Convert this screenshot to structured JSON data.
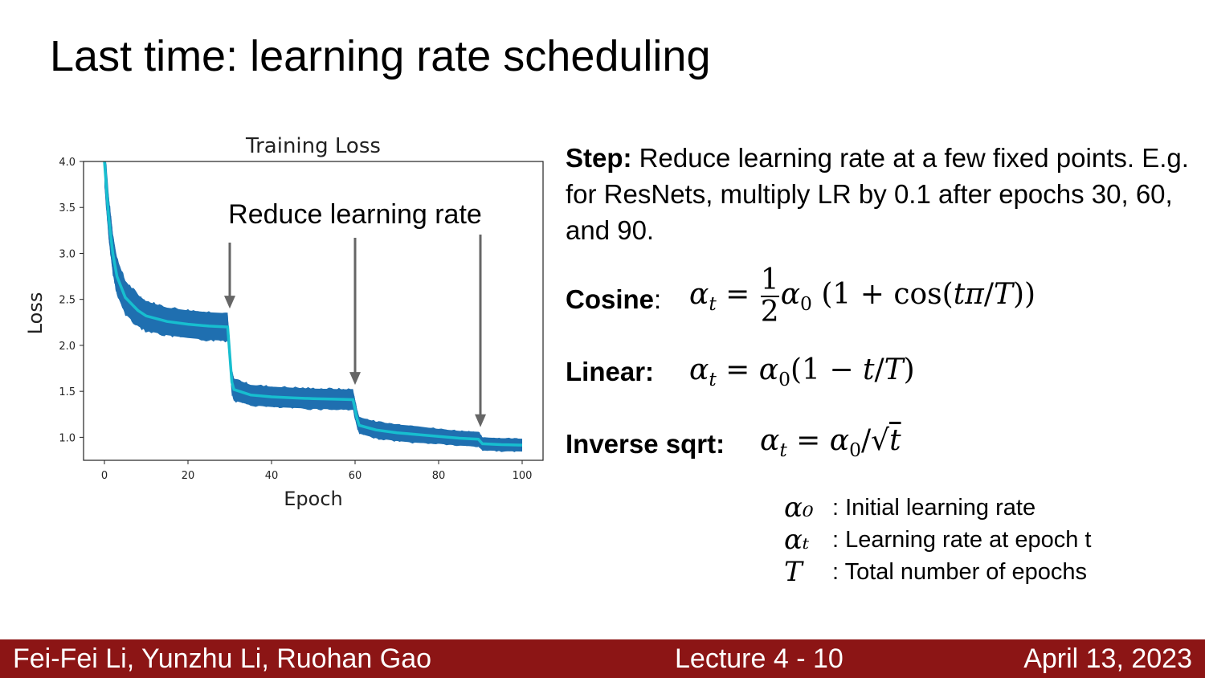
{
  "slide": {
    "title": "Last time: learning rate scheduling"
  },
  "chart_data": {
    "type": "line",
    "title": "Training Loss",
    "xlabel": "Epoch",
    "ylabel": "Loss",
    "xlim": [
      -5,
      105
    ],
    "ylim": [
      0.75,
      4.0
    ],
    "xticks": [
      0,
      20,
      40,
      60,
      80,
      100
    ],
    "yticks": [
      1.0,
      1.5,
      2.0,
      2.5,
      3.0,
      3.5,
      4.0
    ],
    "grid": false,
    "series": [
      {
        "name": "",
        "x": [
          0,
          1,
          2,
          3,
          5,
          8,
          10,
          15,
          20,
          25,
          29.5,
          30.5,
          31,
          35,
          40,
          45,
          50,
          55,
          59.5,
          60.5,
          61,
          65,
          70,
          75,
          80,
          85,
          89.5,
          90.5,
          95,
          100
        ],
        "y": [
          4.0,
          3.4,
          3.0,
          2.75,
          2.52,
          2.38,
          2.32,
          2.26,
          2.23,
          2.21,
          2.2,
          1.6,
          1.52,
          1.46,
          1.44,
          1.43,
          1.42,
          1.415,
          1.41,
          1.2,
          1.13,
          1.08,
          1.05,
          1.03,
          1.01,
          0.99,
          0.98,
          0.93,
          0.92,
          0.915
        ],
        "band": [
          0.26,
          0.24,
          0.22,
          0.2,
          0.18,
          0.17,
          0.16,
          0.15,
          0.15,
          0.15,
          0.15,
          0.13,
          0.12,
          0.11,
          0.11,
          0.11,
          0.11,
          0.11,
          0.11,
          0.1,
          0.09,
          0.09,
          0.09,
          0.09,
          0.08,
          0.08,
          0.08,
          0.07,
          0.07,
          0.07
        ]
      }
    ],
    "annotation": {
      "text": "Reduce learning rate",
      "arrow_epochs": [
        30,
        60,
        90
      ]
    },
    "colors": {
      "band": "#1f6fb0",
      "line": "#17becf",
      "arrow": "#666666"
    }
  },
  "methods": {
    "step_label": "Step:",
    "step_text": " Reduce learning rate at a few fixed points. E.g. for ResNets, multiply LR by 0.1 after epochs 30, 60, and 90.",
    "cosine_label": "Cosine",
    "cosine_colon": ":",
    "linear_label": "Linear:",
    "invsqrt_label": "Inverse sqrt:"
  },
  "legend": [
    {
      "symbol": "α₀",
      "desc": ": Initial learning rate"
    },
    {
      "symbol": "αₜ",
      "desc": ": Learning rate at epoch t"
    },
    {
      "symbol": "T",
      "desc": ": Total number of epochs"
    }
  ],
  "footer": {
    "authors": "Fei-Fei Li, Yunzhu Li, Ruohan Gao",
    "lecture": "Lecture 4 - 10",
    "date": "April 13, 2023"
  }
}
